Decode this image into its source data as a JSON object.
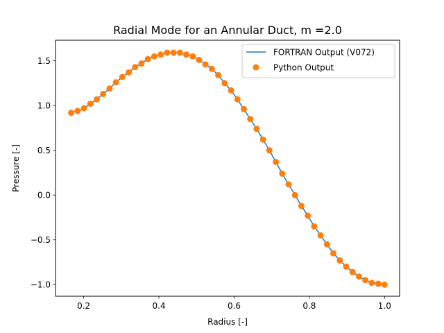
{
  "chart_data": {
    "type": "line",
    "title": "Radial Mode for an Annular Duct, m =2.0",
    "xlabel": "Radius [-]",
    "ylabel": "Pressure [-]",
    "xlim": [
      0.125,
      1.04
    ],
    "ylim": [
      -1.13,
      1.73
    ],
    "xticks": [
      0.2,
      0.4,
      0.6,
      0.8,
      1.0
    ],
    "xtick_labels": [
      "0.2",
      "0.4",
      "0.6",
      "0.8",
      "1.0"
    ],
    "yticks": [
      -1.0,
      -0.5,
      0.0,
      0.5,
      1.0,
      1.5
    ],
    "ytick_labels": [
      "−1.0",
      "−0.5",
      "0.0",
      "0.5",
      "1.0",
      "1.5"
    ],
    "grid": false,
    "legend_position": "top-right",
    "series": [
      {
        "name": "FORTRAN Output (V072)",
        "style": "line",
        "color": "#1f77b4",
        "x": [
          0.1667,
          0.1837,
          0.2007,
          0.2177,
          0.2347,
          0.2517,
          0.2687,
          0.2857,
          0.3027,
          0.3197,
          0.3367,
          0.3537,
          0.3707,
          0.3878,
          0.4048,
          0.4218,
          0.4388,
          0.4558,
          0.4728,
          0.4898,
          0.5068,
          0.5238,
          0.5408,
          0.5578,
          0.5748,
          0.5918,
          0.6088,
          0.6259,
          0.6429,
          0.6599,
          0.6769,
          0.6939,
          0.7109,
          0.7279,
          0.7449,
          0.7619,
          0.7789,
          0.7959,
          0.8129,
          0.8299,
          0.8469,
          0.8639,
          0.881,
          0.898,
          0.915,
          0.932,
          0.949,
          0.966,
          0.983,
          1.0
        ],
        "y": [
          0.92,
          0.94,
          0.97,
          1.02,
          1.07,
          1.13,
          1.19,
          1.26,
          1.32,
          1.37,
          1.43,
          1.47,
          1.52,
          1.55,
          1.57,
          1.59,
          1.59,
          1.59,
          1.57,
          1.55,
          1.51,
          1.46,
          1.41,
          1.34,
          1.25,
          1.17,
          1.07,
          0.96,
          0.85,
          0.74,
          0.62,
          0.5,
          0.37,
          0.24,
          0.12,
          0.0,
          -0.12,
          -0.23,
          -0.35,
          -0.45,
          -0.55,
          -0.65,
          -0.73,
          -0.8,
          -0.86,
          -0.91,
          -0.95,
          -0.98,
          -0.99,
          -1.0
        ]
      },
      {
        "name": "Python Output",
        "style": "markers",
        "color": "#ff7f0e",
        "x": [
          0.1667,
          0.1837,
          0.2007,
          0.2177,
          0.2347,
          0.2517,
          0.2687,
          0.2857,
          0.3027,
          0.3197,
          0.3367,
          0.3537,
          0.3707,
          0.3878,
          0.4048,
          0.4218,
          0.4388,
          0.4558,
          0.4728,
          0.4898,
          0.5068,
          0.5238,
          0.5408,
          0.5578,
          0.5748,
          0.5918,
          0.6088,
          0.6259,
          0.6429,
          0.6599,
          0.6769,
          0.6939,
          0.7109,
          0.7279,
          0.7449,
          0.7619,
          0.7789,
          0.7959,
          0.8129,
          0.8299,
          0.8469,
          0.8639,
          0.881,
          0.898,
          0.915,
          0.932,
          0.949,
          0.966,
          0.983,
          1.0
        ],
        "y": [
          0.92,
          0.94,
          0.97,
          1.02,
          1.07,
          1.13,
          1.19,
          1.26,
          1.32,
          1.37,
          1.43,
          1.47,
          1.52,
          1.55,
          1.57,
          1.59,
          1.59,
          1.59,
          1.57,
          1.55,
          1.51,
          1.46,
          1.41,
          1.34,
          1.25,
          1.17,
          1.07,
          0.96,
          0.85,
          0.74,
          0.62,
          0.5,
          0.37,
          0.24,
          0.12,
          0.0,
          -0.12,
          -0.23,
          -0.35,
          -0.45,
          -0.55,
          -0.65,
          -0.73,
          -0.8,
          -0.86,
          -0.91,
          -0.95,
          -0.98,
          -0.99,
          -1.0
        ]
      }
    ]
  }
}
